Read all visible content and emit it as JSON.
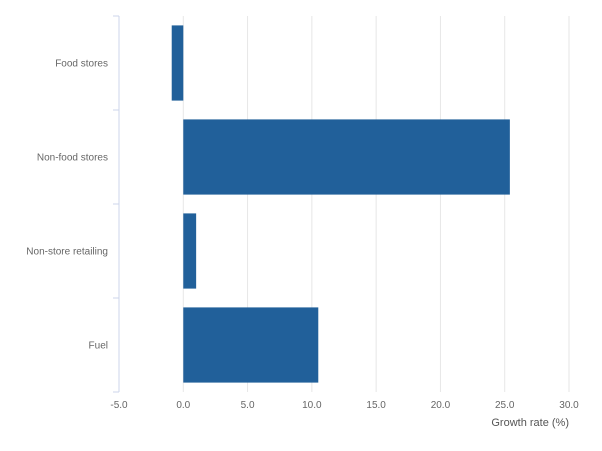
{
  "chart_data": {
    "type": "bar",
    "orientation": "horizontal",
    "categories": [
      "Food stores",
      "Non-food stores",
      "Non-store retailing",
      "Fuel"
    ],
    "values": [
      -0.9,
      25.4,
      1.0,
      10.5
    ],
    "xlabel": "Growth rate (%)",
    "ylabel": "",
    "xlim": [
      -5.0,
      30.0
    ],
    "xticks": [
      "-5.0",
      "0.0",
      "5.0",
      "10.0",
      "15.0",
      "20.0",
      "25.0",
      "30.0"
    ],
    "grid": "vertical",
    "bar_color": "#21609a",
    "grid_color": "#e6e6e6",
    "axis_color": "#ccd6eb"
  }
}
